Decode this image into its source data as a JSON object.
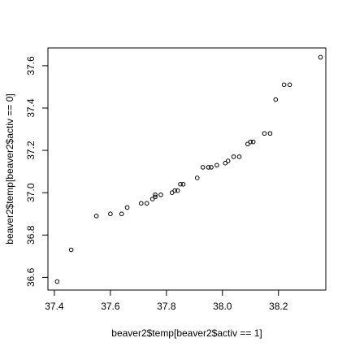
{
  "chart_data": {
    "type": "scatter",
    "title": "",
    "xlabel": "beaver2$temp[beaver2$activ == 1]",
    "ylabel": "beaver2$temp[beaver2$activ == 0]",
    "xlim": [
      37.377,
      38.369
    ],
    "ylim": [
      36.54,
      37.684
    ],
    "xticks": [
      "37.4",
      "37.6",
      "37.8",
      "38.0",
      "38.2"
    ],
    "yticks": [
      "36.6",
      "36.8",
      "37.0",
      "37.2",
      "37.4",
      "37.6"
    ],
    "grid": false,
    "legend": "none",
    "marker_color": "#000000",
    "points": [
      [
        37.41,
        36.58
      ],
      [
        37.46,
        36.73
      ],
      [
        37.55,
        36.89
      ],
      [
        37.6,
        36.9
      ],
      [
        37.64,
        36.9
      ],
      [
        37.66,
        36.93
      ],
      [
        37.71,
        36.95
      ],
      [
        37.73,
        36.95
      ],
      [
        37.75,
        36.97
      ],
      [
        37.76,
        36.98
      ],
      [
        37.76,
        36.99
      ],
      [
        37.78,
        36.99
      ],
      [
        37.82,
        37.0
      ],
      [
        37.83,
        37.01
      ],
      [
        37.84,
        37.01
      ],
      [
        37.85,
        37.04
      ],
      [
        37.86,
        37.04
      ],
      [
        37.91,
        37.07
      ],
      [
        37.93,
        37.12
      ],
      [
        37.95,
        37.12
      ],
      [
        37.96,
        37.12
      ],
      [
        37.98,
        37.13
      ],
      [
        38.01,
        37.14
      ],
      [
        38.02,
        37.15
      ],
      [
        38.04,
        37.17
      ],
      [
        38.06,
        37.17
      ],
      [
        38.09,
        37.23
      ],
      [
        38.1,
        37.24
      ],
      [
        38.11,
        37.24
      ],
      [
        38.15,
        37.28
      ],
      [
        38.17,
        37.28
      ],
      [
        38.19,
        37.44
      ],
      [
        38.22,
        37.51
      ],
      [
        38.24,
        37.51
      ],
      [
        38.35,
        37.64
      ]
    ]
  }
}
